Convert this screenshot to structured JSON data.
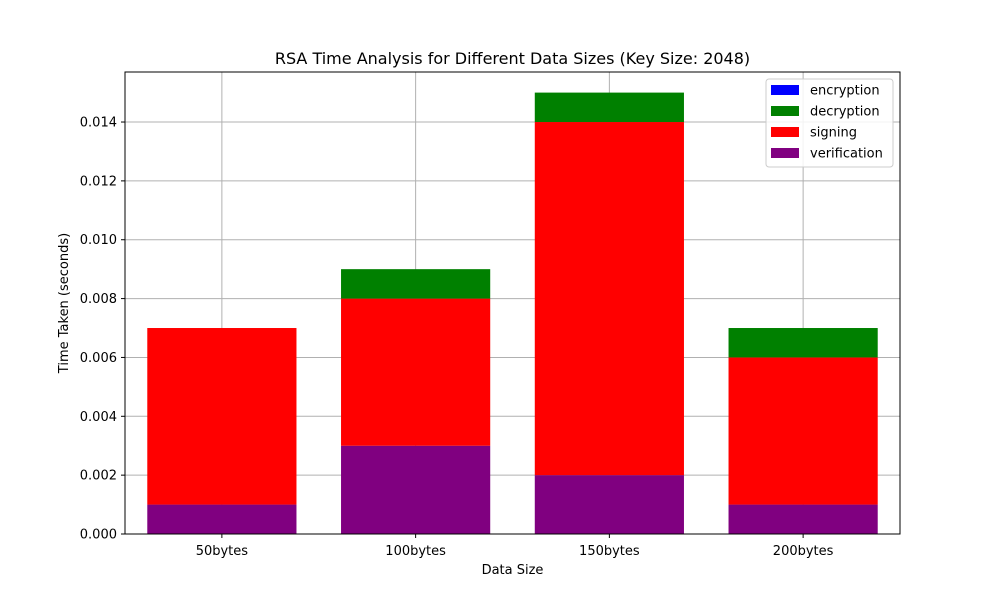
{
  "chart_data": {
    "type": "bar",
    "stacked": true,
    "title": "RSA Time Analysis for Different Data Sizes (Key Size: 2048)",
    "xlabel": "Data Size",
    "ylabel": "Time Taken (seconds)",
    "categories": [
      "50bytes",
      "100bytes",
      "150bytes",
      "200bytes"
    ],
    "ylim": [
      0,
      0.0157
    ],
    "yticks": [
      "0.000",
      "0.002",
      "0.004",
      "0.006",
      "0.008",
      "0.010",
      "0.012",
      "0.014"
    ],
    "grid": true,
    "legend_position": "top-right",
    "series": [
      {
        "name": "encryption",
        "color": "#0000ff",
        "values": [
          0.0,
          0.0,
          0.0,
          0.0
        ]
      },
      {
        "name": "decryption",
        "color": "#008000",
        "values": [
          0.0,
          0.001,
          0.001,
          0.001
        ]
      },
      {
        "name": "signing",
        "color": "#ff0000",
        "values": [
          0.006,
          0.005,
          0.012,
          0.005
        ]
      },
      {
        "name": "verification",
        "color": "#800080",
        "values": [
          0.001,
          0.003,
          0.002,
          0.001
        ]
      }
    ]
  }
}
